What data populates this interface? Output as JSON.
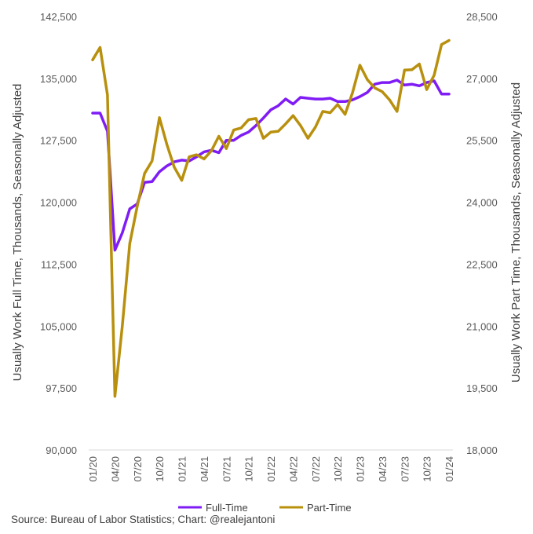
{
  "chart_data": {
    "type": "line",
    "x_tick_labels": [
      "01/20",
      "04/20",
      "07/20",
      "10/20",
      "01/21",
      "04/21",
      "07/21",
      "10/21",
      "01/22",
      "04/22",
      "07/22",
      "10/22",
      "01/23",
      "04/23",
      "07/23",
      "10/23",
      "01/24"
    ],
    "left_axis": {
      "title": "Usually Work Full Time, Thousands, Seasonally Adjusted",
      "ylim": [
        90000,
        142500
      ],
      "tick_labels": [
        "90,000",
        "97,500",
        "105,000",
        "112,500",
        "120,000",
        "127,500",
        "135,000",
        "142,500"
      ]
    },
    "right_axis": {
      "title": "Usually Work Part Time, Thousands, Seasonally Adjusted",
      "ylim": [
        18000,
        28500
      ],
      "tick_labels": [
        "18,000",
        "19,500",
        "21,000",
        "22,500",
        "24,000",
        "25,500",
        "27,000",
        "28,500"
      ]
    },
    "series": [
      {
        "name": "Full-Time",
        "axis": "left",
        "color": "#7f1cf5",
        "values": [
          130800,
          130800,
          128600,
          114200,
          116300,
          119200,
          119800,
          122400,
          122500,
          123700,
          124400,
          124900,
          125100,
          125000,
          125500,
          126100,
          126300,
          126000,
          127500,
          127500,
          128100,
          128500,
          129300,
          130200,
          131200,
          131700,
          132500,
          131900,
          132700,
          132600,
          132500,
          132500,
          132600,
          132200,
          132200,
          132400,
          132800,
          133300,
          134300,
          134500,
          134500,
          134800,
          134200,
          134300,
          134100,
          134500,
          134700,
          133100,
          133100
        ]
      },
      {
        "name": "Part-Time",
        "axis": "right",
        "color": "#b8900e",
        "values": [
          27450,
          27750,
          26600,
          19300,
          21000,
          23000,
          23900,
          24700,
          25000,
          26050,
          25400,
          24850,
          24530,
          25100,
          25150,
          25050,
          25250,
          25600,
          25300,
          25750,
          25800,
          26000,
          26030,
          25550,
          25700,
          25720,
          25900,
          26100,
          25860,
          25550,
          25820,
          26200,
          26170,
          26370,
          26130,
          26650,
          27320,
          26970,
          26770,
          26680,
          26480,
          26200,
          27200,
          27210,
          27350,
          26730,
          27080,
          27820,
          27920
        ]
      }
    ],
    "legend": {
      "position": "bottom",
      "items": [
        "Full-Time",
        "Part-Time"
      ]
    }
  },
  "source_text": "Source: Bureau of Labor Statistics; Chart: @realejantoni"
}
